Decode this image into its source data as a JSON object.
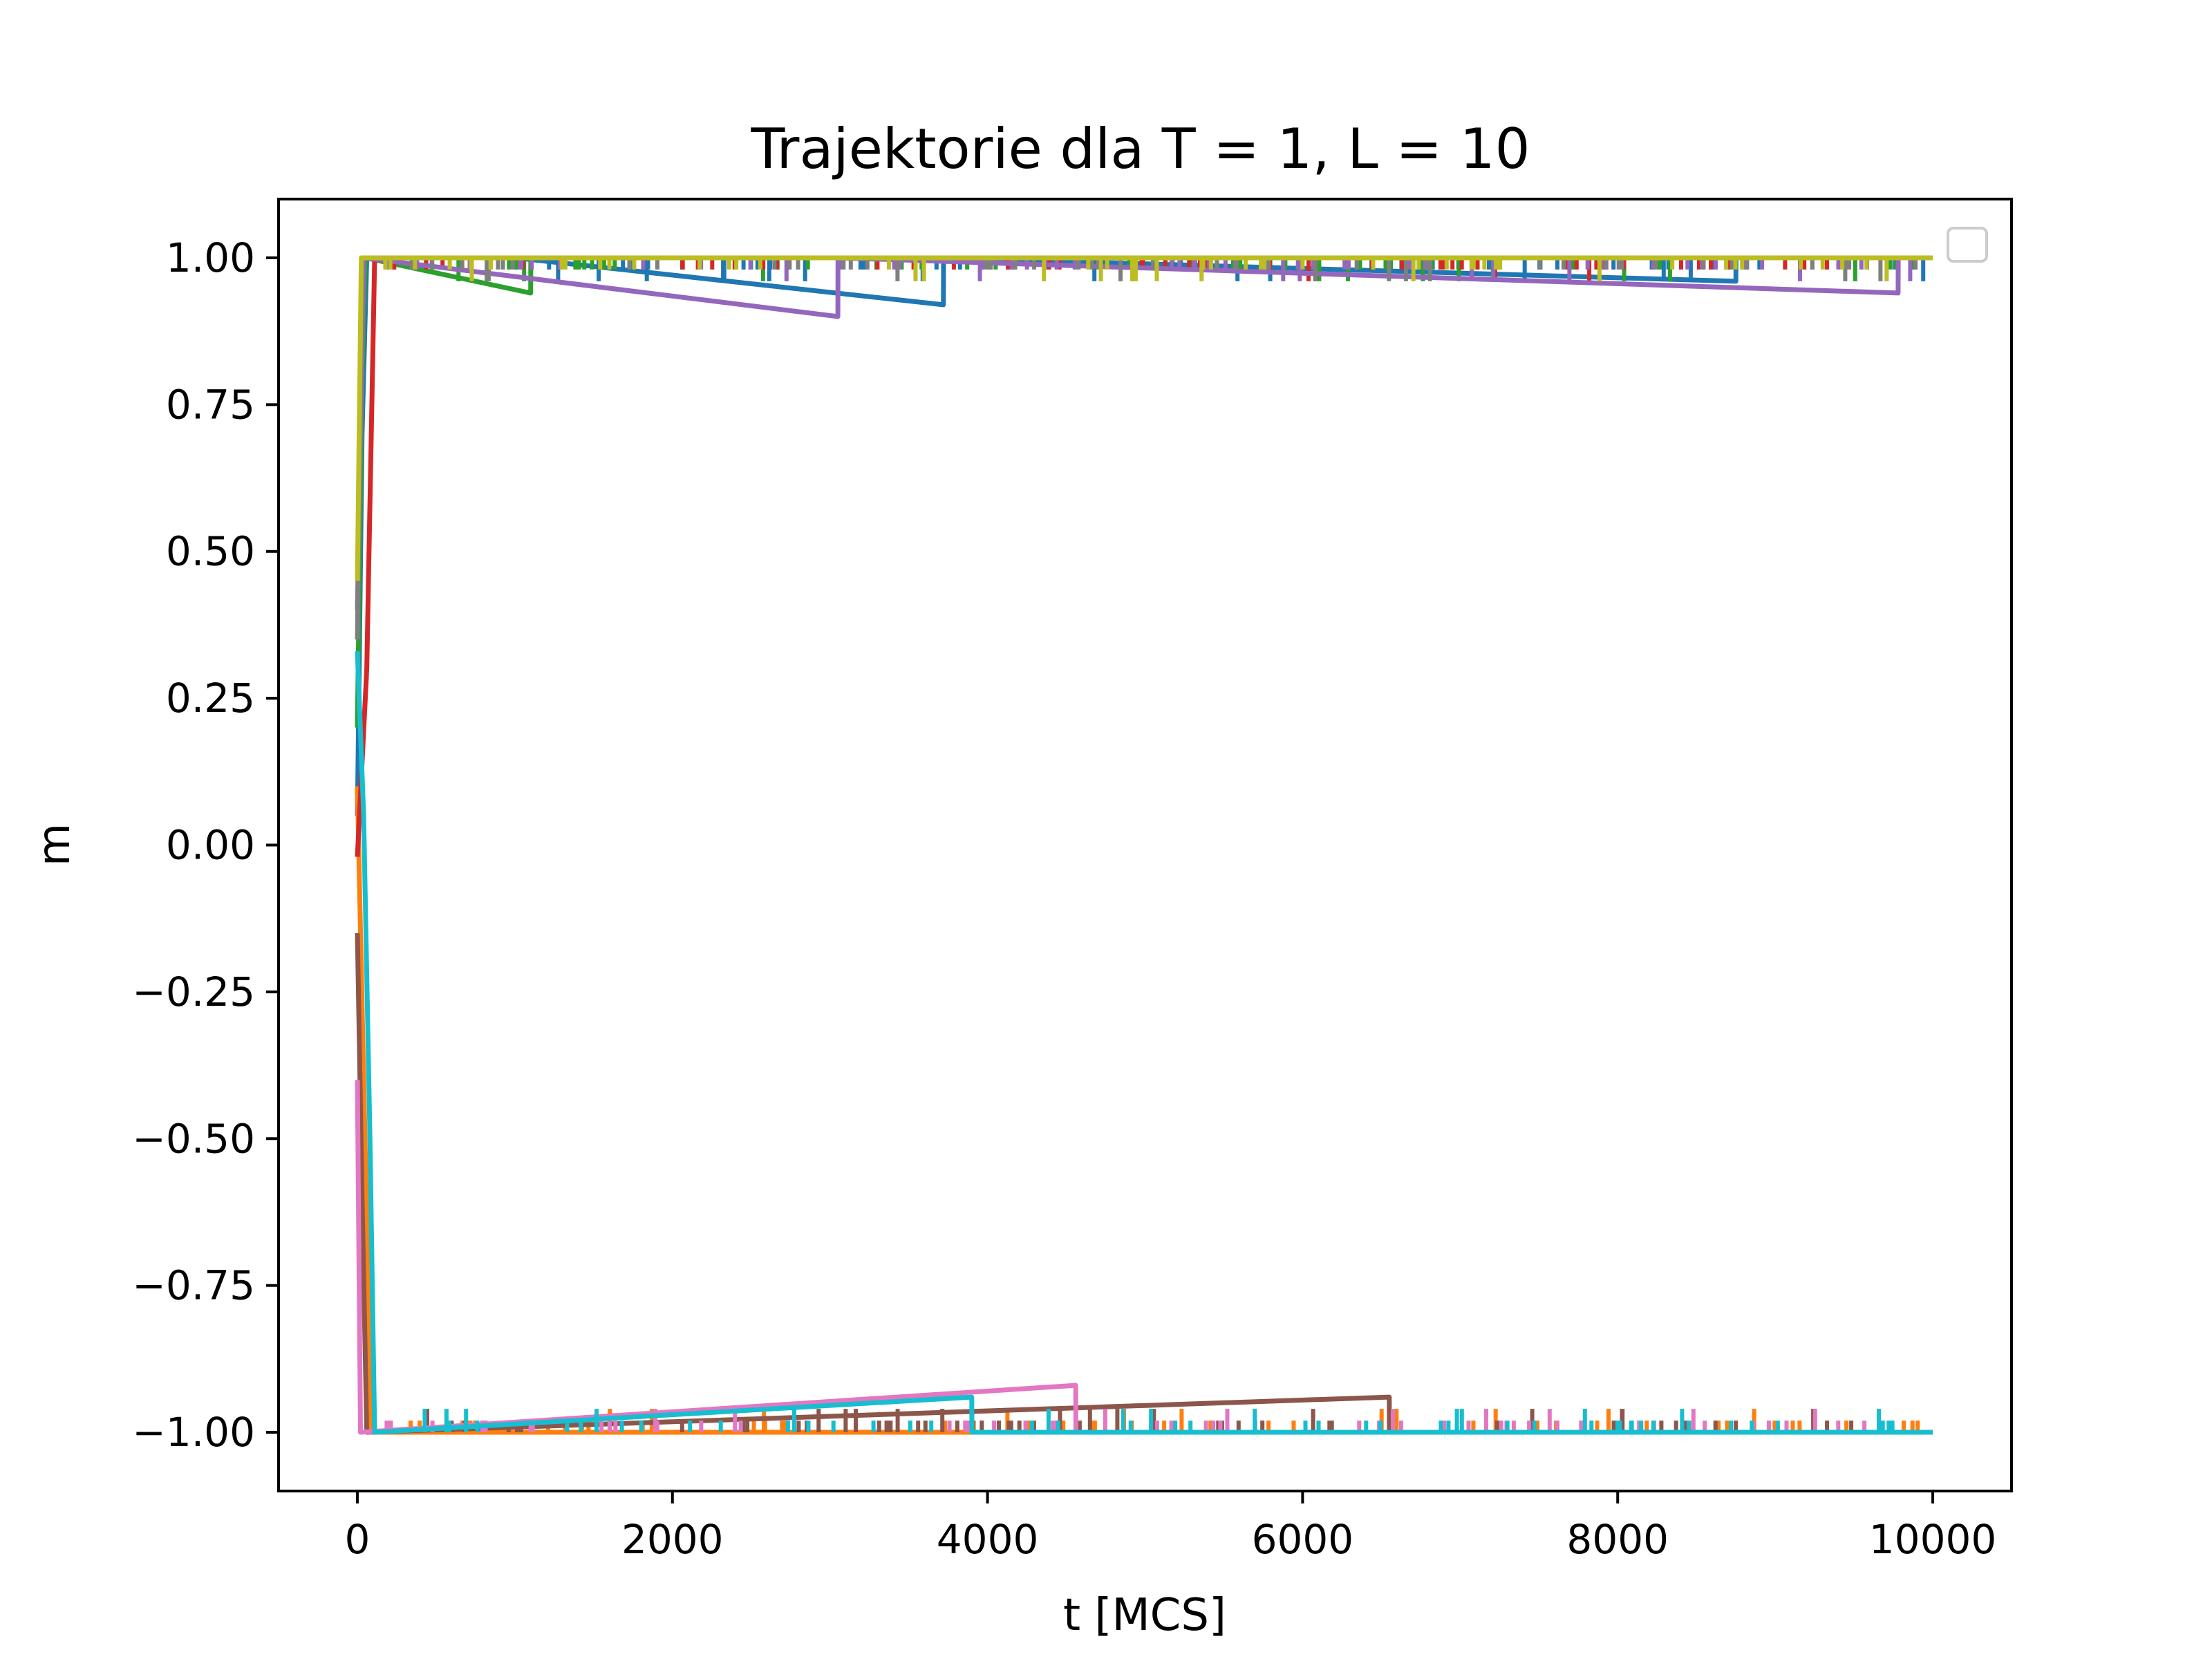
{
  "chart_data": {
    "type": "line",
    "title": "Trajektorie dla T = 1, L = 10",
    "xlabel": "t [MCS]",
    "ylabel": "m",
    "xlim": [
      -500,
      10500
    ],
    "ylim": [
      -1.1,
      1.1
    ],
    "xticks": [
      0,
      2000,
      4000,
      6000,
      8000,
      10000
    ],
    "xtick_labels": [
      "0",
      "2000",
      "4000",
      "6000",
      "8000",
      "10000"
    ],
    "yticks": [
      -1.0,
      -0.75,
      -0.5,
      -0.25,
      0.0,
      0.25,
      0.5,
      0.75,
      1.0
    ],
    "ytick_labels": [
      "−1.00",
      "−0.75",
      "−0.50",
      "−0.25",
      "0.00",
      "0.25",
      "0.50",
      "0.75",
      "1.00"
    ],
    "legend": "top-right (empty)",
    "grid": false,
    "series": [
      {
        "color": "#1f77b4",
        "values": [
          [
            0,
            0.05
          ],
          [
            30,
            0.7
          ],
          [
            60,
            1.0
          ],
          [
            1000,
            1.0
          ],
          [
            3720,
            0.92
          ],
          [
            3721,
            1.0
          ],
          [
            8750,
            0.96
          ],
          [
            8751,
            1.0
          ],
          [
            10000,
            1.0
          ]
        ]
      },
      {
        "color": "#ff7f0e",
        "values": [
          [
            0,
            0.1
          ],
          [
            40,
            -0.4
          ],
          [
            90,
            -1.0
          ],
          [
            10000,
            -1.0
          ]
        ]
      },
      {
        "color": "#2ca02c",
        "values": [
          [
            0,
            0.2
          ],
          [
            30,
            0.8
          ],
          [
            50,
            1.0
          ],
          [
            1100,
            0.94
          ],
          [
            1101,
            1.0
          ],
          [
            10000,
            1.0
          ]
        ]
      },
      {
        "color": "#d62728",
        "values": [
          [
            0,
            -0.02
          ],
          [
            60,
            0.3
          ],
          [
            110,
            1.0
          ],
          [
            10000,
            1.0
          ]
        ]
      },
      {
        "color": "#9467bd",
        "values": [
          [
            0,
            0.4
          ],
          [
            40,
            1.0
          ],
          [
            3050,
            0.9
          ],
          [
            3051,
            1.0
          ],
          [
            9780,
            0.94
          ],
          [
            9781,
            1.0
          ],
          [
            10000,
            1.0
          ]
        ]
      },
      {
        "color": "#8c564b",
        "values": [
          [
            0,
            -0.15
          ],
          [
            30,
            -0.6
          ],
          [
            60,
            -1.0
          ],
          [
            6550,
            -0.94
          ],
          [
            6551,
            -1.0
          ],
          [
            10000,
            -1.0
          ]
        ]
      },
      {
        "color": "#e377c2",
        "values": [
          [
            0,
            -0.4
          ],
          [
            20,
            -1.0
          ],
          [
            4560,
            -0.92
          ],
          [
            4561,
            -1.0
          ],
          [
            10000,
            -1.0
          ]
        ]
      },
      {
        "color": "#7f7f7f",
        "values": [
          [
            0,
            0.35
          ],
          [
            30,
            1.0
          ],
          [
            10000,
            1.0
          ]
        ]
      },
      {
        "color": "#bcbd22",
        "values": [
          [
            0,
            0.45
          ],
          [
            25,
            1.0
          ],
          [
            10000,
            1.0
          ]
        ]
      },
      {
        "color": "#17becf",
        "values": [
          [
            0,
            0.33
          ],
          [
            40,
            0.05
          ],
          [
            80,
            -0.5
          ],
          [
            110,
            -1.0
          ],
          [
            3900,
            -0.94
          ],
          [
            3901,
            -1.0
          ],
          [
            10000,
            -1.0
          ]
        ]
      }
    ]
  }
}
